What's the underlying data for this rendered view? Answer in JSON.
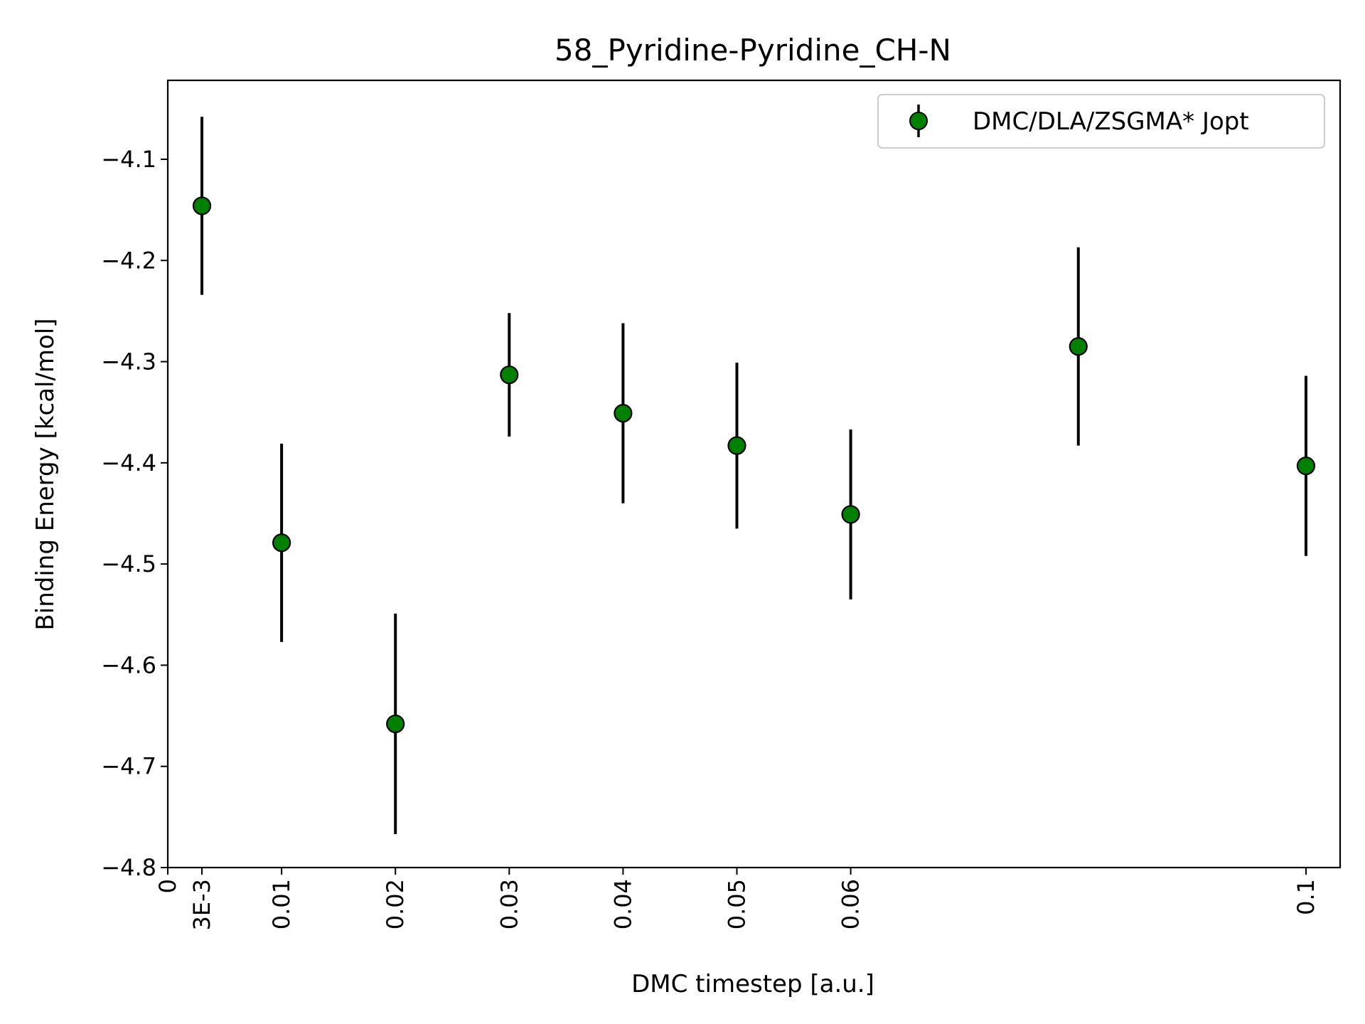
{
  "chart_data": {
    "type": "scatter",
    "title": "58_Pyridine-Pyridine_CH-N",
    "xlabel": "DMC timestep [a.u.]",
    "ylabel": "Binding Energy [kcal/mol]",
    "xlim": [
      0,
      0.103
    ],
    "ylim": [
      -4.8,
      -4.022
    ],
    "x_ticks": [
      {
        "value": 0,
        "label": "0"
      },
      {
        "value": 0.003,
        "label": "3E-3"
      },
      {
        "value": 0.01,
        "label": "0.01"
      },
      {
        "value": 0.02,
        "label": "0.02"
      },
      {
        "value": 0.03,
        "label": "0.03"
      },
      {
        "value": 0.04,
        "label": "0.04"
      },
      {
        "value": 0.05,
        "label": "0.05"
      },
      {
        "value": 0.06,
        "label": "0.06"
      },
      {
        "value": 0.1,
        "label": "0.1"
      }
    ],
    "y_ticks": [
      {
        "value": -4.1,
        "label": "−4.1"
      },
      {
        "value": -4.2,
        "label": "−4.2"
      },
      {
        "value": -4.3,
        "label": "−4.3"
      },
      {
        "value": -4.4,
        "label": "−4.4"
      },
      {
        "value": -4.5,
        "label": "−4.5"
      },
      {
        "value": -4.6,
        "label": "−4.6"
      },
      {
        "value": -4.7,
        "label": "−4.7"
      },
      {
        "value": -4.8,
        "label": "−4.8"
      }
    ],
    "grid": false,
    "legend_position": "top-right",
    "series": [
      {
        "name": "DMC/DLA/ZSGMA* Jopt",
        "marker_color": "#008000",
        "marker_edge_color": "#000000",
        "errorbar_color": "#000000",
        "points": [
          {
            "x": 0.003,
            "y": -4.146,
            "err": 0.088
          },
          {
            "x": 0.01,
            "y": -4.479,
            "err": 0.098
          },
          {
            "x": 0.02,
            "y": -4.658,
            "err": 0.109
          },
          {
            "x": 0.03,
            "y": -4.313,
            "err": 0.061
          },
          {
            "x": 0.04,
            "y": -4.351,
            "err": 0.089
          },
          {
            "x": 0.05,
            "y": -4.383,
            "err": 0.082
          },
          {
            "x": 0.06,
            "y": -4.451,
            "err": 0.084
          },
          {
            "x": 0.08,
            "y": -4.285,
            "err": 0.098
          },
          {
            "x": 0.1,
            "y": -4.403,
            "err": 0.089
          }
        ]
      }
    ]
  }
}
